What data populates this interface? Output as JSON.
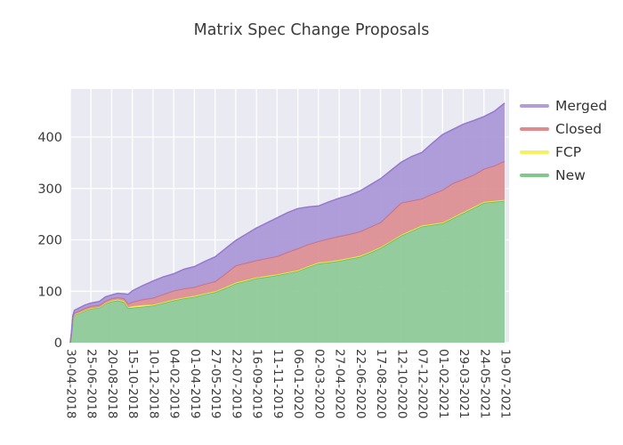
{
  "chart_data": {
    "type": "area",
    "stacked": true,
    "title": "Matrix Spec Change Proposals",
    "xlabel": "",
    "ylabel": "",
    "ylim": [
      0,
      493
    ],
    "grid": true,
    "legend_position": "top-right",
    "background_color": "#eaeaf2",
    "grid_color": "#ffffff",
    "text_color": "#3a3a3a",
    "y_ticks": [
      0,
      100,
      200,
      300,
      400
    ],
    "x_tick_labels": [
      "30-04-2018",
      "25-06-2018",
      "20-08-2018",
      "15-10-2018",
      "10-12-2018",
      "04-02-2019",
      "01-04-2019",
      "27-05-2019",
      "22-07-2019",
      "16-09-2019",
      "11-11-2019",
      "06-01-2020",
      "02-03-2020",
      "27-04-2020",
      "22-06-2020",
      "17-08-2020",
      "12-10-2020",
      "07-12-2020",
      "01-02-2021",
      "29-03-2021",
      "24-05-2021",
      "19-07-2021"
    ],
    "x": [
      0,
      0.06,
      0.12,
      0.2,
      0.4,
      0.7,
      1.0,
      1.4,
      1.7,
      2.0,
      2.3,
      2.6,
      2.8,
      3.0,
      3.5,
      4.0,
      4.5,
      5.0,
      5.5,
      6.0,
      6.5,
      7.0,
      7.5,
      8.0,
      8.5,
      9.0,
      9.5,
      10.0,
      10.5,
      11.0,
      11.5,
      12.0,
      12.5,
      13.0,
      13.5,
      14.0,
      14.5,
      15.0,
      15.5,
      16.0,
      16.5,
      17.0,
      17.5,
      18.0,
      18.5,
      19.0,
      19.5,
      20.0,
      20.5,
      21.0
    ],
    "series": [
      {
        "name": "New",
        "color": "#82c78e",
        "line": "#5eb96e",
        "fill": "#8cc997",
        "values": [
          0,
          18,
          45,
          54,
          57,
          62,
          66,
          68,
          76,
          80,
          82,
          79,
          67,
          68,
          70,
          72,
          77,
          82,
          86,
          89,
          94,
          98,
          106,
          115,
          120,
          125,
          128,
          131,
          135,
          139,
          147,
          154,
          156,
          159,
          163,
          167,
          175,
          184,
          196,
          208,
          217,
          226,
          229,
          232,
          242,
          252,
          262,
          272,
          274,
          276
        ]
      },
      {
        "name": "FCP",
        "color": "#f5f163",
        "line": "#e9e43e",
        "fill": "#f6f360",
        "values": [
          0,
          1,
          1,
          1,
          1,
          1,
          1,
          1,
          1,
          2,
          2,
          2,
          2,
          3,
          3,
          2,
          2,
          2,
          2,
          2,
          2,
          2,
          2,
          2,
          2,
          2,
          2,
          2,
          2,
          2,
          2,
          2,
          2,
          2,
          2,
          2,
          2,
          2,
          2,
          2,
          2,
          2,
          2,
          2,
          2,
          2,
          2,
          2,
          2,
          2
        ]
      },
      {
        "name": "Closed",
        "color": "#df8a8d",
        "line": "#d26a76",
        "fill": "#dc8d93",
        "values": [
          0,
          1,
          2,
          3,
          3,
          4,
          4,
          4,
          4,
          4,
          4,
          5,
          7,
          8,
          11,
          13,
          15,
          17,
          17,
          17,
          18,
          19,
          26,
          33,
          33,
          33,
          34,
          35,
          39,
          42,
          42,
          41,
          44,
          46,
          46,
          47,
          48,
          48,
          55,
          62,
          57,
          52,
          58,
          63,
          66,
          64,
          62,
          64,
          68,
          75
        ]
      },
      {
        "name": "Merged",
        "color": "#b29ddb",
        "line": "#9678cf",
        "fill": "#a996d8",
        "values": [
          0,
          2,
          4,
          5,
          6,
          6,
          6,
          7,
          8,
          7,
          8,
          9,
          18,
          22,
          27,
          33,
          34,
          33,
          38,
          40,
          44,
          48,
          49,
          49,
          56,
          63,
          69,
          75,
          77,
          78,
          73,
          69,
          72,
          74,
          76,
          79,
          82,
          85,
          82,
          79,
          86,
          90,
          99,
          108,
          105,
          107,
          106,
          102,
          106,
          113
        ]
      }
    ]
  }
}
